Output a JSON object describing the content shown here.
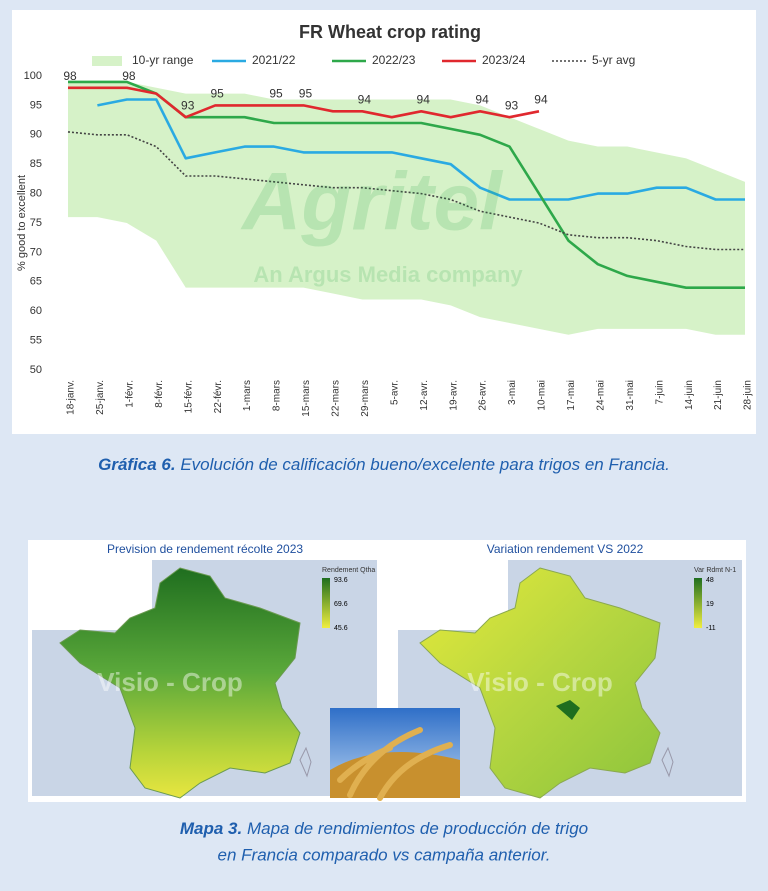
{
  "chart_data": {
    "type": "line",
    "title": "FR Wheat crop rating",
    "y_label": "% good to excellent",
    "watermark": [
      "Agritel",
      "An Argus Media company"
    ],
    "categories": [
      "18-janv.",
      "25-janv.",
      "1-févr.",
      "8-févr.",
      "15-févr.",
      "22-févr.",
      "1-mars",
      "8-mars",
      "15-mars",
      "22-mars",
      "29-mars",
      "5-avr.",
      "12-avr.",
      "19-avr.",
      "26-avr.",
      "3-mai",
      "10-mai",
      "17-mai",
      "24-mai",
      "31-mai",
      "7-juin",
      "14-juin",
      "21-juin",
      "28-juin"
    ],
    "series": [
      {
        "name": "10-yr range",
        "color": "#d6f2c8",
        "style": "band",
        "upper": [
          99,
          99,
          99,
          98,
          97,
          97,
          97,
          96,
          96,
          96,
          96,
          96,
          96,
          96,
          95,
          93,
          91,
          89,
          88,
          88,
          87,
          86,
          84,
          82
        ],
        "lower": [
          76,
          76,
          75,
          72,
          64,
          64,
          64,
          64,
          64,
          63,
          62,
          62,
          62,
          61,
          59,
          58,
          57,
          56,
          57,
          57,
          57,
          57,
          56,
          56
        ]
      },
      {
        "name": "2021/22",
        "color": "#2aaae2",
        "style": "solid",
        "values": [
          null,
          95,
          96,
          96,
          86,
          87,
          88,
          88,
          87,
          87,
          87,
          87,
          86,
          85,
          81,
          79,
          79,
          79,
          80,
          80,
          81,
          81,
          79,
          79
        ]
      },
      {
        "name": "2022/23",
        "color": "#2ea84a",
        "style": "solid",
        "values": [
          99,
          99,
          99,
          97,
          93,
          93,
          93,
          92,
          92,
          92,
          92,
          92,
          92,
          91,
          90,
          88,
          80,
          72,
          68,
          66,
          65,
          64,
          64,
          64
        ]
      },
      {
        "name": "2023/24",
        "color": "#e0282e",
        "style": "solid",
        "values": [
          98,
          98,
          98,
          97,
          93,
          95,
          95,
          95,
          95,
          94,
          94,
          93,
          94,
          93,
          94,
          93,
          94,
          null,
          null,
          null,
          null,
          null,
          null,
          null
        ],
        "value_labels": [
          "98",
          null,
          "98",
          null,
          "93",
          "95",
          null,
          "95",
          "95",
          null,
          "94",
          null,
          "94",
          null,
          "94",
          "93",
          "94",
          null,
          null,
          null,
          null,
          null,
          null,
          null
        ]
      },
      {
        "name": "5-yr avg",
        "color": "#444444",
        "style": "dotted",
        "values": [
          90.5,
          90,
          90,
          88,
          83,
          83,
          82.5,
          82,
          81.5,
          81,
          81,
          80.5,
          80,
          79,
          77,
          76,
          75,
          73,
          72.5,
          72.5,
          72,
          71,
          70.5,
          70.5
        ]
      }
    ],
    "ylim": [
      50,
      100
    ],
    "yticks": [
      50,
      55,
      60,
      65,
      70,
      75,
      80,
      85,
      90,
      95,
      100
    ],
    "grid": false,
    "legend": "top"
  },
  "caption_1": {
    "label": "Gráfica 6.",
    "text": " Evolución de calificación bueno/excelente para trigos en Francia."
  },
  "maps": [
    {
      "title": "Prevision de rendement récolte 2023",
      "legend_title": "Rendement Qtha",
      "legend_labels": [
        "93.6",
        "69.6",
        "45.6"
      ],
      "watermark": "Visio - Crop"
    },
    {
      "title": "Variation rendement VS 2022",
      "legend_title": "Var Rdmt N-1",
      "legend_labels": [
        "48",
        "19",
        "-11"
      ],
      "watermark": "Visio - Crop"
    }
  ],
  "caption_2": {
    "label": "Mapa 3.",
    "lines": [
      " Mapa de rendimientos de producción de trigo",
      "en Francia comparado vs campaña anterior."
    ]
  }
}
